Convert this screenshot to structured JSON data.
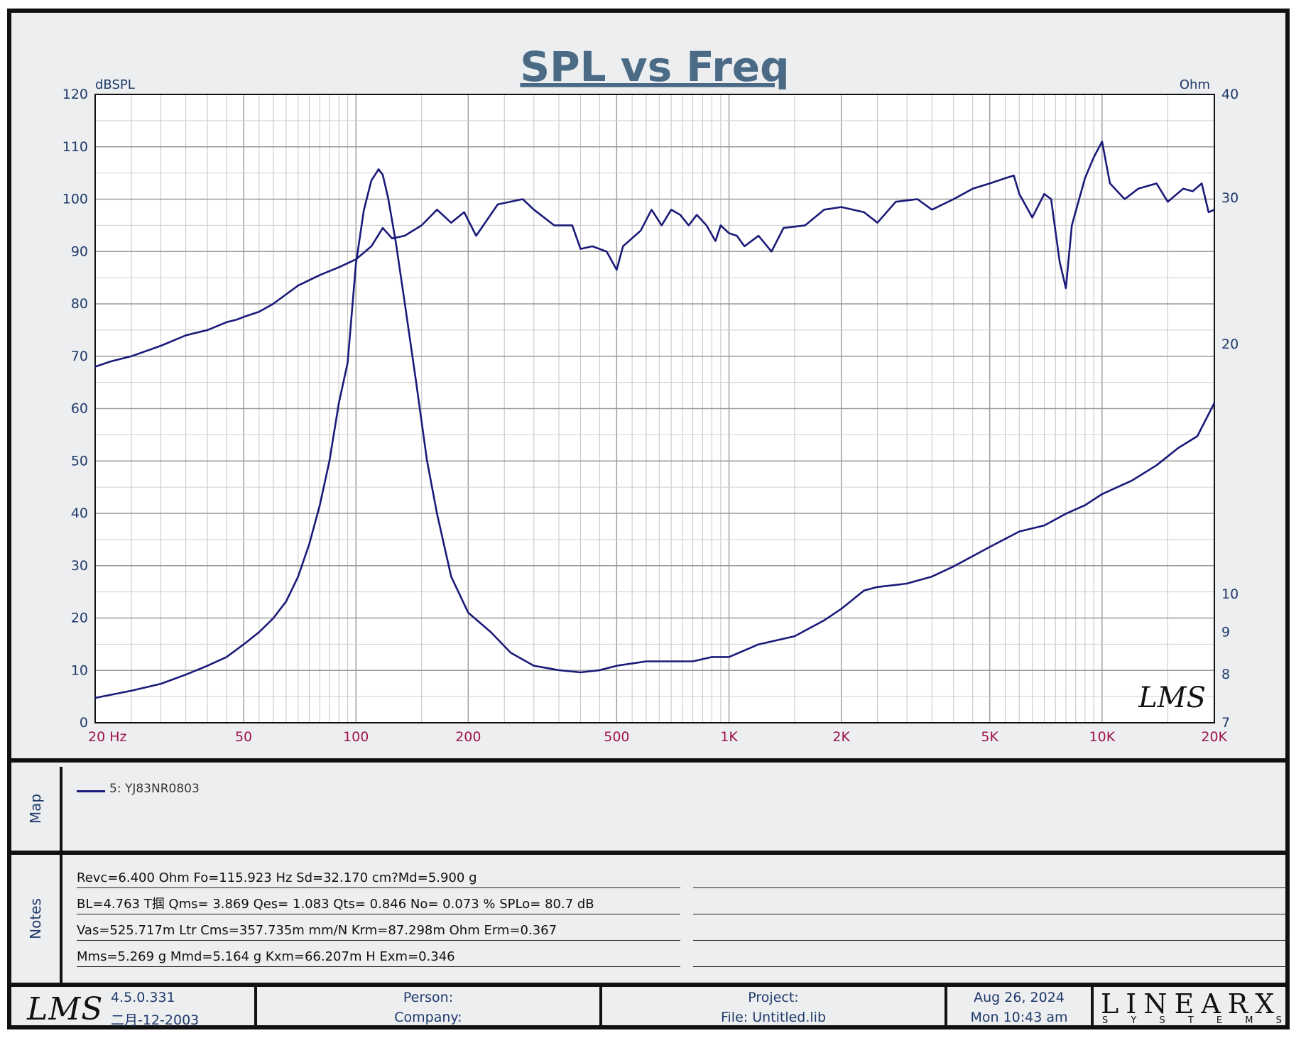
{
  "chart_data": {
    "type": "line",
    "title": "SPL vs Freq",
    "ylabel": "dBSPL",
    "y2label": "Ohm",
    "xscale": "log",
    "xlim": [
      20,
      20000
    ],
    "ylim": [
      0,
      120
    ],
    "y2lim": [
      7,
      40
    ],
    "yticks": [
      0,
      10,
      20,
      30,
      40,
      50,
      60,
      70,
      80,
      90,
      100,
      110,
      120
    ],
    "y2ticks": [
      7,
      8,
      9,
      10,
      20,
      30,
      40
    ],
    "xticks": [
      {
        "value": 20,
        "label": "20  Hz"
      },
      {
        "value": 50,
        "label": "50"
      },
      {
        "value": 100,
        "label": "100"
      },
      {
        "value": 200,
        "label": "200"
      },
      {
        "value": 500,
        "label": "500"
      },
      {
        "value": 1000,
        "label": "1K"
      },
      {
        "value": 2000,
        "label": "2K"
      },
      {
        "value": 5000,
        "label": "5K"
      },
      {
        "value": 10000,
        "label": "10K"
      },
      {
        "value": 20000,
        "label": "20K"
      }
    ],
    "series": [
      {
        "name": "SPL",
        "axis": "left",
        "color": "#1a1a7a",
        "points": [
          [
            20,
            68
          ],
          [
            22,
            69
          ],
          [
            25,
            70
          ],
          [
            30,
            72
          ],
          [
            35,
            74
          ],
          [
            40,
            75
          ],
          [
            45,
            76.5
          ],
          [
            48,
            77
          ],
          [
            50,
            77.5
          ],
          [
            55,
            78.5
          ],
          [
            60,
            80
          ],
          [
            70,
            83.5
          ],
          [
            80,
            85.5
          ],
          [
            90,
            87
          ],
          [
            100,
            88.5
          ],
          [
            110,
            91
          ],
          [
            118,
            94.5
          ],
          [
            125,
            92.5
          ],
          [
            135,
            93
          ],
          [
            150,
            95
          ],
          [
            165,
            98
          ],
          [
            180,
            95.5
          ],
          [
            195,
            97.5
          ],
          [
            210,
            93
          ],
          [
            240,
            99
          ],
          [
            280,
            100
          ],
          [
            300,
            98
          ],
          [
            340,
            95
          ],
          [
            380,
            95
          ],
          [
            400,
            90.5
          ],
          [
            430,
            91
          ],
          [
            470,
            90
          ],
          [
            500,
            86.5
          ],
          [
            520,
            91
          ],
          [
            580,
            94
          ],
          [
            620,
            98
          ],
          [
            660,
            95
          ],
          [
            700,
            98
          ],
          [
            740,
            97
          ],
          [
            780,
            95
          ],
          [
            820,
            97
          ],
          [
            870,
            95
          ],
          [
            920,
            92
          ],
          [
            950,
            95
          ],
          [
            1000,
            93.5
          ],
          [
            1050,
            93
          ],
          [
            1100,
            91
          ],
          [
            1200,
            93
          ],
          [
            1300,
            90
          ],
          [
            1400,
            94.5
          ],
          [
            1600,
            95
          ],
          [
            1800,
            98
          ],
          [
            2000,
            98.5
          ],
          [
            2300,
            97.5
          ],
          [
            2500,
            95.5
          ],
          [
            2800,
            99.5
          ],
          [
            3200,
            100
          ],
          [
            3500,
            98
          ],
          [
            4000,
            100
          ],
          [
            4500,
            102
          ],
          [
            5000,
            103
          ],
          [
            5500,
            104
          ],
          [
            5800,
            104.5
          ],
          [
            6000,
            101
          ],
          [
            6500,
            96.5
          ],
          [
            7000,
            101
          ],
          [
            7300,
            100
          ],
          [
            7700,
            88
          ],
          [
            8000,
            83
          ],
          [
            8300,
            95
          ],
          [
            9000,
            104
          ],
          [
            9500,
            108
          ],
          [
            10000,
            111
          ],
          [
            10500,
            103
          ],
          [
            11500,
            100
          ],
          [
            12500,
            102
          ],
          [
            14000,
            103
          ],
          [
            15000,
            99.5
          ],
          [
            16500,
            102
          ],
          [
            17500,
            101.5
          ],
          [
            18500,
            103
          ],
          [
            19300,
            97.5
          ],
          [
            20000,
            98
          ]
        ]
      },
      {
        "name": "Impedance",
        "axis": "right",
        "color": "#1a1a7a",
        "points": [
          [
            20,
            7.5
          ],
          [
            25,
            7.65
          ],
          [
            30,
            7.8
          ],
          [
            35,
            8.0
          ],
          [
            40,
            8.2
          ],
          [
            45,
            8.4
          ],
          [
            50,
            8.7
          ],
          [
            55,
            9.0
          ],
          [
            60,
            9.35
          ],
          [
            65,
            9.8
          ],
          [
            70,
            10.5
          ],
          [
            75,
            11.5
          ],
          [
            80,
            12.8
          ],
          [
            85,
            14.5
          ],
          [
            90,
            17.0
          ],
          [
            95,
            19.0
          ],
          [
            100,
            25
          ],
          [
            105,
            29.0
          ],
          [
            110,
            31.5
          ],
          [
            115,
            32.5
          ],
          [
            118,
            32.0
          ],
          [
            122,
            30.0
          ],
          [
            128,
            26.5
          ],
          [
            135,
            22.5
          ],
          [
            145,
            18.0
          ],
          [
            155,
            14.5
          ],
          [
            165,
            12.5
          ],
          [
            180,
            10.5
          ],
          [
            200,
            9.5
          ],
          [
            230,
            9.0
          ],
          [
            260,
            8.5
          ],
          [
            300,
            8.2
          ],
          [
            350,
            8.1
          ],
          [
            400,
            8.05
          ],
          [
            450,
            8.1
          ],
          [
            500,
            8.2
          ],
          [
            600,
            8.3
          ],
          [
            700,
            8.3
          ],
          [
            800,
            8.3
          ],
          [
            900,
            8.4
          ],
          [
            1000,
            8.4
          ],
          [
            1200,
            8.7
          ],
          [
            1500,
            8.9
          ],
          [
            1800,
            9.3
          ],
          [
            2000,
            9.6
          ],
          [
            2300,
            10.1
          ],
          [
            2500,
            10.2
          ],
          [
            3000,
            10.3
          ],
          [
            3500,
            10.5
          ],
          [
            4000,
            10.8
          ],
          [
            5000,
            11.4
          ],
          [
            6000,
            11.9
          ],
          [
            7000,
            12.1
          ],
          [
            8000,
            12.5
          ],
          [
            9000,
            12.8
          ],
          [
            10000,
            13.2
          ],
          [
            12000,
            13.7
          ],
          [
            14000,
            14.3
          ],
          [
            16000,
            15.0
          ],
          [
            18000,
            15.5
          ],
          [
            20000,
            17.0
          ]
        ]
      }
    ],
    "legend": [
      "5: YJ83NR0803"
    ]
  },
  "map": {
    "label": "Map",
    "legend_entry": "5: YJ83NR0803"
  },
  "notes": {
    "label": "Notes",
    "lines": [
      "Revc=6.400 Ohm  Fo=115.923 Hz  Sd=32.170 cm?Md=5.900 g",
      "BL=4.763 T掴  Qms= 3.869  Qes= 1.083  Qts= 0.846  No= 0.073 %  SPLo= 80.7 dB",
      "Vas=525.717m Ltr  Cms=357.735m mm/N  Krm=87.298m Ohm  Erm=0.367",
      "Mms=5.269 g  Mmd=5.164 g  Kxm=66.207m H  Exm=0.346"
    ]
  },
  "footer": {
    "logo": "LMS",
    "version": "4.5.0.331",
    "version_date": "二月-12-2003",
    "person_label": "Person:",
    "company_label": "Company:",
    "project_label": "Project:",
    "file_label": "File: Untitled.lib",
    "date": "Aug 26, 2024",
    "time": "Mon 10:43 am",
    "brand": "LINEARX",
    "brand_sub": "S Y S T E M S"
  },
  "watermark": "LMS",
  "colors": {
    "curve": "#1a1a7a",
    "axis_text": "#1f3a6a",
    "x_tick_text": "#a0144a",
    "title": "#4a6a85"
  }
}
